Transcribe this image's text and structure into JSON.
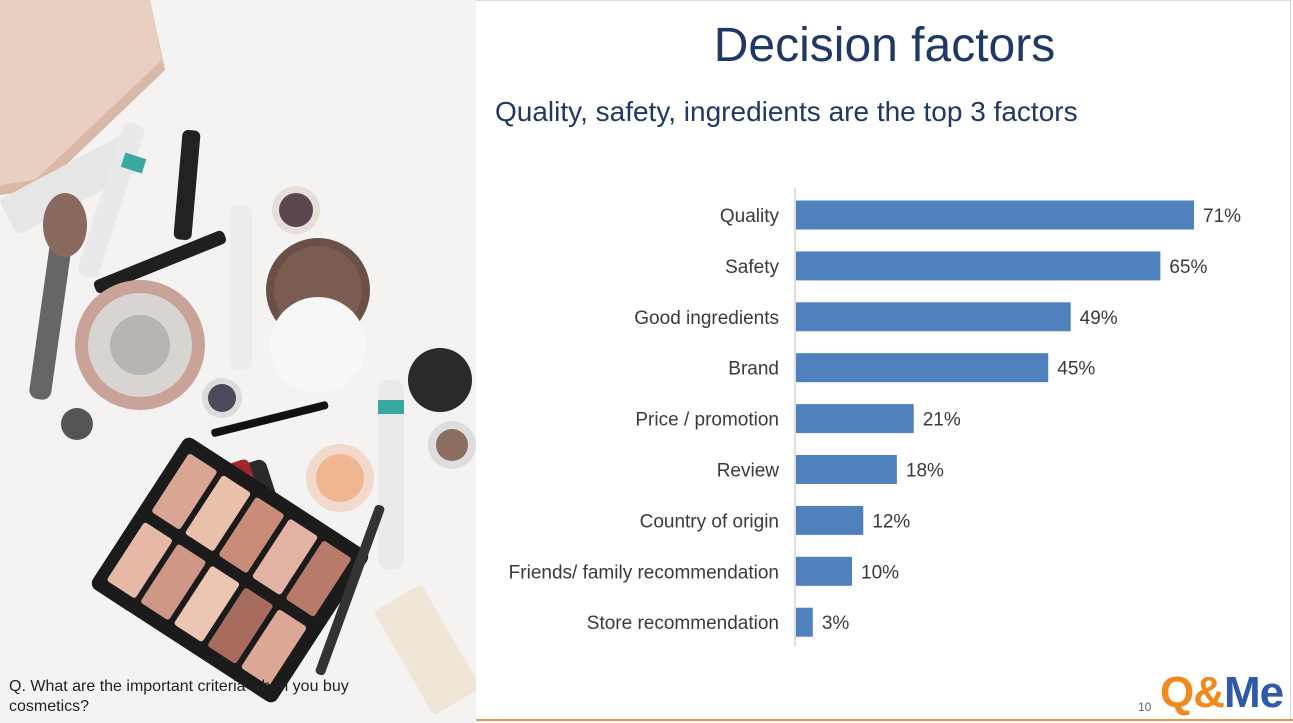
{
  "slide": {
    "title": "Decision factors",
    "subtitle": "Quality, safety, ingredients are the top 3 factors",
    "question": "Q. What are the important criteria when you buy cosmetics?",
    "page_number": "10",
    "logo": {
      "q": "Q",
      "amp": "&",
      "me": "Me"
    }
  },
  "colors": {
    "bar": "#4f81bd",
    "title": "#1f3864",
    "accent": "#f08a1c"
  },
  "chart_data": {
    "type": "bar",
    "orientation": "horizontal",
    "categories": [
      "Quality",
      "Safety",
      "Good ingredients",
      "Brand",
      "Price / promotion",
      "Review",
      "Country of origin",
      "Friends/ family recommendation",
      "Store recommendation"
    ],
    "values": [
      71,
      65,
      49,
      45,
      21,
      18,
      12,
      10,
      3
    ],
    "value_labels": [
      "71%",
      "65%",
      "49%",
      "45%",
      "21%",
      "18%",
      "12%",
      "10%",
      "3%"
    ],
    "unit": "%",
    "xlim": [
      0,
      80
    ],
    "grid": false,
    "legend": "none"
  }
}
